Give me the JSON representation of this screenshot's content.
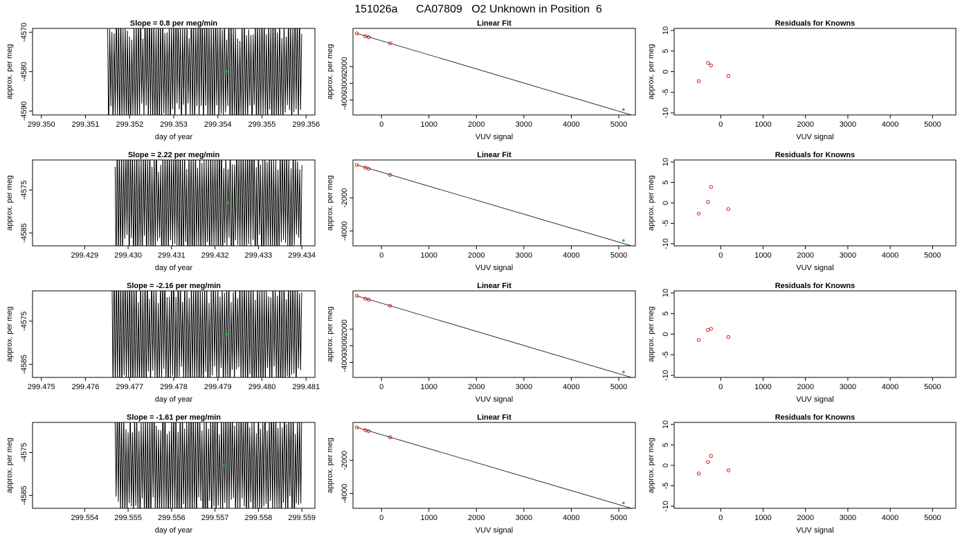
{
  "page_title": "151026a      CA07809   O2 Unknown in Position  6",
  "colors": {
    "trace": "#000000",
    "unknown_point": "#00cc00",
    "known_point": "#cc0000",
    "fit_line": "#000000"
  },
  "chart_data": [
    {
      "type": "line",
      "row": 0,
      "col": 0,
      "title": "Slope =  0.8  per meg/min",
      "xlabel": "day of year",
      "ylabel": "approx. per meg",
      "xlim": [
        299.3498,
        299.3562
      ],
      "ylim": [
        -4591,
        -4569
      ],
      "xticks": [
        299.35,
        299.351,
        299.352,
        299.353,
        299.354,
        299.355,
        299.356
      ],
      "xtick_labels": [
        "299.350",
        "299.351",
        "299.352",
        "299.353",
        "299.354",
        "299.355",
        "299.356"
      ],
      "yticks": [
        -4570,
        -4580,
        -4590
      ],
      "ytick_labels": [
        "-4570",
        "-4580",
        "-4590"
      ],
      "trace": {
        "x_start": 299.3515,
        "x_end": 299.3559,
        "center": -4580,
        "amplitude": 14,
        "cycles": 88,
        "seed": 11
      },
      "marker": {
        "x": 299.3542,
        "y": -4580
      }
    },
    {
      "type": "scatter",
      "row": 0,
      "col": 1,
      "title": "Linear Fit",
      "xlabel": "VUV signal",
      "ylabel": "approx. per meg",
      "xlim": [
        -600,
        5350
      ],
      "ylim": [
        -4900,
        300
      ],
      "xticks": [
        0,
        1000,
        2000,
        3000,
        4000,
        5000
      ],
      "xtick_labels": [
        "0",
        "1000",
        "2000",
        "3000",
        "4000",
        "5000"
      ],
      "yticks": [
        -2000,
        -3000,
        -4000
      ],
      "ytick_labels": [
        "-2000",
        "-3000",
        "-4000"
      ],
      "known_points": {
        "x": [
          -520,
          -340,
          -270,
          180
        ],
        "y": [
          0,
          -170,
          -230,
          -600
        ]
      },
      "unknown_points": {
        "x": [
          5100
        ],
        "y": [
          -4575
        ]
      },
      "fit_line": {
        "x": [
          -520,
          5300
        ],
        "y": [
          0,
          -4930
        ]
      }
    },
    {
      "type": "scatter",
      "row": 0,
      "col": 2,
      "title": "Residuals for Knowns",
      "xlabel": "VUV signal",
      "ylabel": "approx. per meg",
      "xlim": [
        -1100,
        5550
      ],
      "ylim": [
        -10.5,
        10.5
      ],
      "xticks": [
        0,
        1000,
        2000,
        3000,
        4000,
        5000
      ],
      "xtick_labels": [
        "0",
        "1000",
        "2000",
        "3000",
        "4000",
        "5000"
      ],
      "yticks": [
        10,
        5,
        0,
        -5,
        -10
      ],
      "ytick_labels": [
        "10",
        "5",
        "0",
        "-5",
        "-10"
      ],
      "points": {
        "x": [
          -520,
          -300,
          -230,
          180
        ],
        "y": [
          -2.3,
          2.1,
          1.5,
          -1.0
        ]
      }
    },
    {
      "type": "line",
      "row": 1,
      "col": 0,
      "title": "Slope =  2.22  per meg/min",
      "xlabel": "day of year",
      "ylabel": "approx. per meg",
      "xlim": [
        299.4278,
        299.4343
      ],
      "ylim": [
        -4588,
        -4568
      ],
      "xticks": [
        299.429,
        299.43,
        299.431,
        299.432,
        299.433,
        299.434
      ],
      "xtick_labels": [
        "299.429",
        "299.430",
        "299.431",
        "299.432",
        "299.433",
        "299.434"
      ],
      "yticks": [
        -4575,
        -4585
      ],
      "ytick_labels": [
        "-4575",
        "-4585"
      ],
      "trace": {
        "x_start": 299.4297,
        "x_end": 299.434,
        "center": -4578,
        "amplitude": 13,
        "cycles": 86,
        "seed": 23
      },
      "marker": {
        "x": 299.4323,
        "y": -4578
      }
    },
    {
      "type": "scatter",
      "row": 1,
      "col": 1,
      "title": "Linear Fit",
      "xlabel": "VUV signal",
      "ylabel": "approx. per meg",
      "xlim": [
        -600,
        5350
      ],
      "ylim": [
        -4900,
        300
      ],
      "xticks": [
        0,
        1000,
        2000,
        3000,
        4000,
        5000
      ],
      "xtick_labels": [
        "0",
        "1000",
        "2000",
        "3000",
        "4000",
        "5000"
      ],
      "yticks": [
        -2000,
        -4000
      ],
      "ytick_labels": [
        "-2000",
        "-4000"
      ],
      "known_points": {
        "x": [
          -520,
          -340,
          -270,
          180
        ],
        "y": [
          0,
          -170,
          -230,
          -600
        ]
      },
      "unknown_points": {
        "x": [
          5100
        ],
        "y": [
          -4575
        ]
      },
      "fit_line": {
        "x": [
          -520,
          5300
        ],
        "y": [
          0,
          -4930
        ]
      }
    },
    {
      "type": "scatter",
      "row": 1,
      "col": 2,
      "title": "Residuals for Knowns",
      "xlabel": "VUV signal",
      "ylabel": "approx. per meg",
      "xlim": [
        -1100,
        5550
      ],
      "ylim": [
        -10.5,
        10.5
      ],
      "xticks": [
        0,
        1000,
        2000,
        3000,
        4000,
        5000
      ],
      "xtick_labels": [
        "0",
        "1000",
        "2000",
        "3000",
        "4000",
        "5000"
      ],
      "yticks": [
        10,
        5,
        0,
        -5,
        -10
      ],
      "ytick_labels": [
        "10",
        "5",
        "0",
        "-5",
        "-10"
      ],
      "points": {
        "x": [
          -520,
          -300,
          -230,
          180
        ],
        "y": [
          -2.6,
          0.2,
          3.9,
          -1.5
        ]
      }
    },
    {
      "type": "line",
      "row": 2,
      "col": 0,
      "title": "Slope =  -2.16  per meg/min",
      "xlabel": "day of year",
      "ylabel": "approx. per meg",
      "xlim": [
        299.4748,
        299.4812
      ],
      "ylim": [
        -4588,
        -4568
      ],
      "xticks": [
        299.475,
        299.476,
        299.477,
        299.478,
        299.479,
        299.48,
        299.481
      ],
      "xtick_labels": [
        "299.475",
        "299.476",
        "299.477",
        "299.478",
        "299.479",
        "299.480",
        "299.481"
      ],
      "yticks": [
        -4575,
        -4585
      ],
      "ytick_labels": [
        "-4575",
        "-4585"
      ],
      "trace": {
        "x_start": 299.4766,
        "x_end": 299.4809,
        "center": -4578,
        "amplitude": 13,
        "cycles": 86,
        "seed": 37
      },
      "marker": {
        "x": 299.4792,
        "y": -4578
      }
    },
    {
      "type": "scatter",
      "row": 2,
      "col": 1,
      "title": "Linear Fit",
      "xlabel": "VUV signal",
      "ylabel": "approx. per meg",
      "xlim": [
        -600,
        5350
      ],
      "ylim": [
        -4900,
        300
      ],
      "xticks": [
        0,
        1000,
        2000,
        3000,
        4000,
        5000
      ],
      "xtick_labels": [
        "0",
        "1000",
        "2000",
        "3000",
        "4000",
        "5000"
      ],
      "yticks": [
        -2000,
        -3000,
        -4000
      ],
      "ytick_labels": [
        "-2000",
        "-3000",
        "-4000"
      ],
      "known_points": {
        "x": [
          -520,
          -340,
          -270,
          180
        ],
        "y": [
          0,
          -170,
          -230,
          -600
        ]
      },
      "unknown_points": {
        "x": [
          5100
        ],
        "y": [
          -4575
        ]
      },
      "fit_line": {
        "x": [
          -520,
          5300
        ],
        "y": [
          0,
          -4930
        ]
      }
    },
    {
      "type": "scatter",
      "row": 2,
      "col": 2,
      "title": "Residuals for Knowns",
      "xlabel": "VUV signal",
      "ylabel": "approx. per meg",
      "xlim": [
        -1100,
        5550
      ],
      "ylim": [
        -10.5,
        10.5
      ],
      "xticks": [
        0,
        1000,
        2000,
        3000,
        4000,
        5000
      ],
      "xtick_labels": [
        "0",
        "1000",
        "2000",
        "3000",
        "4000",
        "5000"
      ],
      "yticks": [
        10,
        5,
        0,
        -5,
        -10
      ],
      "ytick_labels": [
        "10",
        "5",
        "0",
        "-5",
        "-10"
      ],
      "points": {
        "x": [
          -520,
          -300,
          -230,
          180
        ],
        "y": [
          -1.4,
          1.0,
          1.3,
          -0.7
        ]
      }
    },
    {
      "type": "line",
      "row": 3,
      "col": 0,
      "title": "Slope =  -1.61  per meg/min",
      "xlabel": "day of year",
      "ylabel": "approx. per meg",
      "xlim": [
        299.5528,
        299.5593
      ],
      "ylim": [
        -4588,
        -4568
      ],
      "xticks": [
        299.554,
        299.555,
        299.556,
        299.557,
        299.558,
        299.559
      ],
      "xtick_labels": [
        "299.554",
        "299.555",
        "299.556",
        "299.557",
        "299.558",
        "299.559"
      ],
      "yticks": [
        -4575,
        -4585
      ],
      "ytick_labels": [
        "-4575",
        "-4585"
      ],
      "trace": {
        "x_start": 299.5547,
        "x_end": 299.559,
        "center": -4578,
        "amplitude": 13,
        "cycles": 86,
        "seed": 53
      },
      "marker": {
        "x": 299.5572,
        "y": -4578
      }
    },
    {
      "type": "scatter",
      "row": 3,
      "col": 1,
      "title": "Linear Fit",
      "xlabel": "VUV signal",
      "ylabel": "approx. per meg",
      "xlim": [
        -600,
        5350
      ],
      "ylim": [
        -4900,
        300
      ],
      "xticks": [
        0,
        1000,
        2000,
        3000,
        4000,
        5000
      ],
      "xtick_labels": [
        "0",
        "1000",
        "2000",
        "3000",
        "4000",
        "5000"
      ],
      "yticks": [
        -2000,
        -4000
      ],
      "ytick_labels": [
        "-2000",
        "-4000"
      ],
      "known_points": {
        "x": [
          -520,
          -340,
          -270,
          180
        ],
        "y": [
          0,
          -170,
          -230,
          -600
        ]
      },
      "unknown_points": {
        "x": [
          5100
        ],
        "y": [
          -4575
        ]
      },
      "fit_line": {
        "x": [
          -520,
          5300
        ],
        "y": [
          0,
          -4930
        ]
      }
    },
    {
      "type": "scatter",
      "row": 3,
      "col": 2,
      "title": "Residuals for Knowns",
      "xlabel": "VUV signal",
      "ylabel": "approx. per meg",
      "xlim": [
        -1100,
        5550
      ],
      "ylim": [
        -10.5,
        10.5
      ],
      "xticks": [
        0,
        1000,
        2000,
        3000,
        4000,
        5000
      ],
      "xtick_labels": [
        "0",
        "1000",
        "2000",
        "3000",
        "4000",
        "5000"
      ],
      "yticks": [
        10,
        5,
        0,
        -5,
        -10
      ],
      "ytick_labels": [
        "10",
        "5",
        "0",
        "-5",
        "-10"
      ],
      "points": {
        "x": [
          -520,
          -300,
          -230,
          180
        ],
        "y": [
          -2.0,
          0.8,
          2.3,
          -1.2
        ]
      }
    }
  ]
}
